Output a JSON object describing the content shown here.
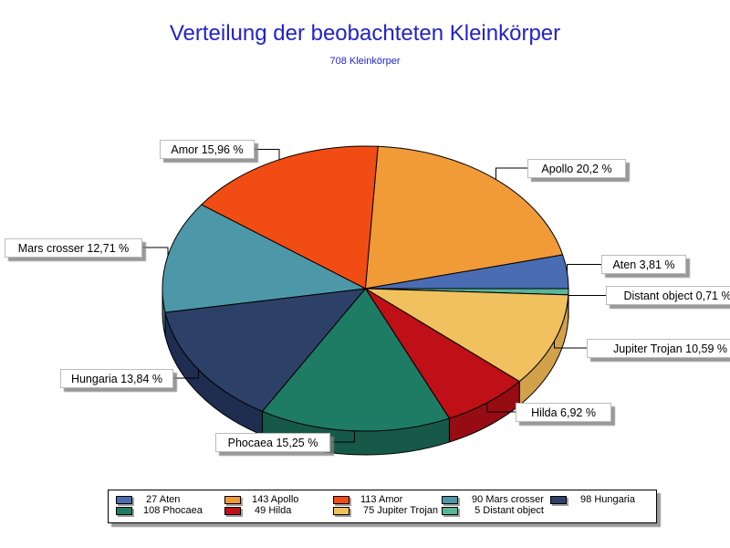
{
  "title": "Verteilung der beobachteten Kleinkörper",
  "subtitle": "708 Kleinkörper",
  "background_color": "#ffffff",
  "title_color": "#2222cc",
  "text_color": "#000000",
  "chart_data": {
    "type": "pie",
    "style": "3d",
    "title": "Verteilung der beobachteten Kleinkörper",
    "subtitle": "708 Kleinkörper",
    "total": 708,
    "start_angle_deg": 0,
    "direction": "counterclockwise",
    "legend_position": "bottom",
    "slices": [
      {
        "id": "aten",
        "name": "Aten",
        "value": 27,
        "percent": 3.81,
        "label": "Aten 3,81 %",
        "legend": "27 Aten",
        "color": "#4a6cb3"
      },
      {
        "id": "apollo",
        "name": "Apollo",
        "value": 143,
        "percent": 20.2,
        "label": "Apollo 20,2 %",
        "legend": "143 Apollo",
        "color": "#f09a38"
      },
      {
        "id": "amor",
        "name": "Amor",
        "value": 113,
        "percent": 15.96,
        "label": "Amor 15,96 %",
        "legend": "113 Amor",
        "color": "#f04c14"
      },
      {
        "id": "mars-crosser",
        "name": "Mars crosser",
        "value": 90,
        "percent": 12.71,
        "label": "Mars crosser 12,71 %",
        "legend": "90 Mars crosser",
        "color": "#4c98a8",
        "dark": "#3b7380"
      },
      {
        "id": "hungaria",
        "name": "Hungaria",
        "value": 98,
        "percent": 13.84,
        "label": "Hungaria 13,84 %",
        "legend": "98 Hungaria",
        "color": "#2d4168",
        "dark": "#1e2d50"
      },
      {
        "id": "phocaea",
        "name": "Phocaea",
        "value": 108,
        "percent": 15.25,
        "label": "Phocaea 15,25 %",
        "legend": "108 Phocaea",
        "color": "#1f7c64"
      },
      {
        "id": "hilda",
        "name": "Hilda",
        "value": 49,
        "percent": 6.92,
        "label": "Hilda 6,92 %",
        "legend": "49 Hilda",
        "color": "#be1016",
        "dark": "#970c12"
      },
      {
        "id": "jupiter-trojan",
        "name": "Jupiter Trojan",
        "value": 75,
        "percent": 10.59,
        "label": "Jupiter Trojan 10,59 %",
        "legend": "75 Jupiter Trojan",
        "color": "#f0c15e",
        "dark": "#d2a24b"
      },
      {
        "id": "distant-object",
        "name": "Distant object",
        "value": 5,
        "percent": 0.71,
        "label": "Distant object 0,71 %",
        "legend": "5 Distant object",
        "color": "#58b597",
        "dark": "#41836d"
      }
    ]
  }
}
